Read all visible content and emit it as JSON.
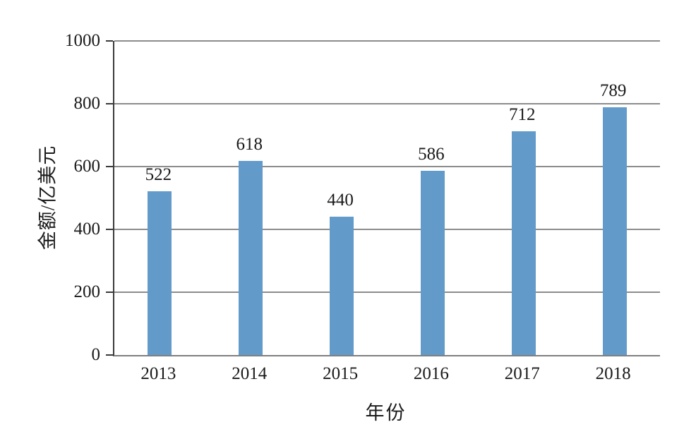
{
  "chart_data": {
    "type": "bar",
    "title": "",
    "categories": [
      "2013",
      "2014",
      "2015",
      "2016",
      "2017",
      "2018"
    ],
    "values": [
      522,
      618,
      440,
      586,
      712,
      789
    ],
    "xlabel": "年份",
    "ylabel": "金额/亿美元",
    "ylim": [
      0,
      1000
    ],
    "yticks": [
      0,
      200,
      400,
      600,
      800,
      1000
    ],
    "grid": true,
    "legend_position": "none",
    "data_labels": true,
    "bar_color": "#629BCA"
  },
  "style": {
    "background_color": "#FFFFFF",
    "text_color": "#1A1A1A",
    "gridline_color": "#8C8C8C",
    "x_axis_color": "#7F7F7F",
    "y_axis_color": "#3A3A3A"
  }
}
